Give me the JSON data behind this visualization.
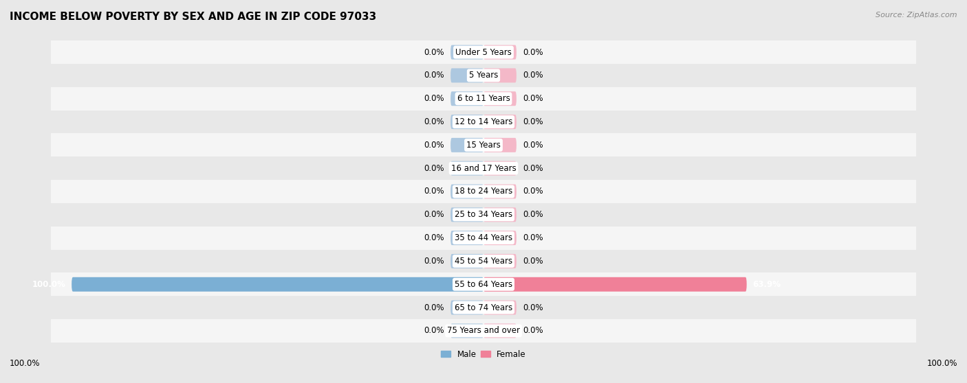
{
  "title": "INCOME BELOW POVERTY BY SEX AND AGE IN ZIP CODE 97033",
  "source": "Source: ZipAtlas.com",
  "categories": [
    "Under 5 Years",
    "5 Years",
    "6 to 11 Years",
    "12 to 14 Years",
    "15 Years",
    "16 and 17 Years",
    "18 to 24 Years",
    "25 to 34 Years",
    "35 to 44 Years",
    "45 to 54 Years",
    "55 to 64 Years",
    "65 to 74 Years",
    "75 Years and over"
  ],
  "male_values": [
    0.0,
    0.0,
    0.0,
    0.0,
    0.0,
    0.0,
    0.0,
    0.0,
    0.0,
    0.0,
    100.0,
    0.0,
    0.0
  ],
  "female_values": [
    0.0,
    0.0,
    0.0,
    0.0,
    0.0,
    0.0,
    0.0,
    0.0,
    0.0,
    0.0,
    63.9,
    0.0,
    0.0
  ],
  "male_color": "#7bafd4",
  "female_color": "#f08098",
  "male_color_stub": "#adc8e0",
  "female_color_stub": "#f4b8c8",
  "background_color": "#e8e8e8",
  "row_colors": [
    "#f5f5f5",
    "#e8e8e8"
  ],
  "max_value": 100.0,
  "legend_male": "Male",
  "legend_female": "Female",
  "bottom_left_label": "100.0%",
  "bottom_right_label": "100.0%",
  "title_fontsize": 11,
  "label_fontsize": 8.5,
  "value_fontsize": 8.5,
  "source_fontsize": 8
}
